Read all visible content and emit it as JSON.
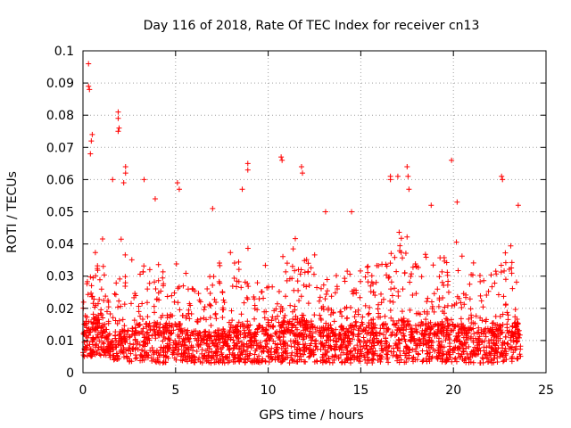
{
  "chart_data": {
    "type": "scatter",
    "title": "Day 116 of 2018, Rate Of TEC Index for receiver cn13",
    "xlabel": "GPS time / hours",
    "ylabel": "ROTI / TECUs",
    "xlim": [
      0,
      25
    ],
    "ylim": [
      0,
      0.1
    ],
    "x_ticks": [
      "0",
      "5",
      "10",
      "15",
      "20",
      "25"
    ],
    "y_ticks": [
      "0",
      "0.01",
      "0.02",
      "0.03",
      "0.04",
      "0.05",
      "0.06",
      "0.07",
      "0.08",
      "0.09",
      "0.1"
    ],
    "x_tick_values": [
      0,
      5,
      10,
      15,
      20,
      25
    ],
    "y_tick_values": [
      0,
      0.01,
      0.02,
      0.03,
      0.04,
      0.05,
      0.06,
      0.07,
      0.08,
      0.09,
      0.1
    ],
    "grid": true,
    "marker": "+",
    "marker_color": "#ff0000",
    "data_x_range": [
      0,
      23.7
    ],
    "series": [
      {
        "name": "ROTI",
        "notable_points": [
          {
            "x": 0.3,
            "y": 0.096
          },
          {
            "x": 0.3,
            "y": 0.089
          },
          {
            "x": 0.35,
            "y": 0.088
          },
          {
            "x": 0.5,
            "y": 0.074
          },
          {
            "x": 0.45,
            "y": 0.072
          },
          {
            "x": 0.4,
            "y": 0.068
          },
          {
            "x": 1.9,
            "y": 0.081
          },
          {
            "x": 1.9,
            "y": 0.079
          },
          {
            "x": 1.95,
            "y": 0.076
          },
          {
            "x": 1.9,
            "y": 0.075
          },
          {
            "x": 2.3,
            "y": 0.064
          },
          {
            "x": 2.3,
            "y": 0.062
          },
          {
            "x": 2.2,
            "y": 0.059
          },
          {
            "x": 1.6,
            "y": 0.06
          },
          {
            "x": 3.3,
            "y": 0.06
          },
          {
            "x": 5.1,
            "y": 0.059
          },
          {
            "x": 5.2,
            "y": 0.057
          },
          {
            "x": 8.9,
            "y": 0.065
          },
          {
            "x": 8.9,
            "y": 0.063
          },
          {
            "x": 8.6,
            "y": 0.057
          },
          {
            "x": 10.7,
            "y": 0.067
          },
          {
            "x": 10.75,
            "y": 0.066
          },
          {
            "x": 11.8,
            "y": 0.064
          },
          {
            "x": 11.85,
            "y": 0.062
          },
          {
            "x": 16.6,
            "y": 0.061
          },
          {
            "x": 16.6,
            "y": 0.06
          },
          {
            "x": 17,
            "y": 0.061
          },
          {
            "x": 17.5,
            "y": 0.064
          },
          {
            "x": 17.55,
            "y": 0.061
          },
          {
            "x": 17.6,
            "y": 0.057
          },
          {
            "x": 19.9,
            "y": 0.066
          },
          {
            "x": 20.2,
            "y": 0.053
          },
          {
            "x": 22.6,
            "y": 0.061
          },
          {
            "x": 22.65,
            "y": 0.06
          },
          {
            "x": 23.5,
            "y": 0.052
          },
          {
            "x": 18.8,
            "y": 0.052
          },
          {
            "x": 3.9,
            "y": 0.054
          },
          {
            "x": 7,
            "y": 0.051
          },
          {
            "x": 13.1,
            "y": 0.05
          },
          {
            "x": 14.5,
            "y": 0.05
          }
        ],
        "envelope": [
          {
            "hour": 0,
            "low": 0.005,
            "mid": 0.012,
            "high": 0.035
          },
          {
            "hour": 1,
            "low": 0.005,
            "mid": 0.014,
            "high": 0.045
          },
          {
            "hour": 1.5,
            "low": 0.004,
            "mid": 0.008,
            "high": 0.02
          },
          {
            "hour": 2,
            "low": 0.003,
            "mid": 0.01,
            "high": 0.045
          },
          {
            "hour": 3,
            "low": 0.003,
            "mid": 0.012,
            "high": 0.04
          },
          {
            "hour": 4,
            "low": 0.003,
            "mid": 0.012,
            "high": 0.038
          },
          {
            "hour": 5,
            "low": 0.003,
            "mid": 0.012,
            "high": 0.035
          },
          {
            "hour": 6,
            "low": 0.003,
            "mid": 0.01,
            "high": 0.03
          },
          {
            "hour": 7,
            "low": 0.003,
            "mid": 0.01,
            "high": 0.032
          },
          {
            "hour": 8,
            "low": 0.003,
            "mid": 0.011,
            "high": 0.038
          },
          {
            "hour": 9,
            "low": 0.003,
            "mid": 0.012,
            "high": 0.04
          },
          {
            "hour": 10,
            "low": 0.003,
            "mid": 0.011,
            "high": 0.035
          },
          {
            "hour": 11,
            "low": 0.003,
            "mid": 0.013,
            "high": 0.045
          },
          {
            "hour": 12,
            "low": 0.003,
            "mid": 0.013,
            "high": 0.045
          },
          {
            "hour": 13,
            "low": 0.003,
            "mid": 0.011,
            "high": 0.035
          },
          {
            "hour": 14,
            "low": 0.003,
            "mid": 0.011,
            "high": 0.038
          },
          {
            "hour": 15,
            "low": 0.003,
            "mid": 0.012,
            "high": 0.04
          },
          {
            "hour": 16,
            "low": 0.003,
            "mid": 0.012,
            "high": 0.04
          },
          {
            "hour": 17,
            "low": 0.003,
            "mid": 0.013,
            "high": 0.045
          },
          {
            "hour": 18,
            "low": 0.003,
            "mid": 0.012,
            "high": 0.042
          },
          {
            "hour": 19,
            "low": 0.003,
            "mid": 0.012,
            "high": 0.04
          },
          {
            "hour": 20,
            "low": 0.003,
            "mid": 0.012,
            "high": 0.042
          },
          {
            "hour": 21,
            "low": 0.003,
            "mid": 0.011,
            "high": 0.036
          },
          {
            "hour": 22,
            "low": 0.003,
            "mid": 0.011,
            "high": 0.036
          },
          {
            "hour": 23,
            "low": 0.003,
            "mid": 0.012,
            "high": 0.042
          },
          {
            "hour": 23.7,
            "low": 0.004,
            "mid": 0.012,
            "high": 0.04
          }
        ]
      }
    ]
  }
}
